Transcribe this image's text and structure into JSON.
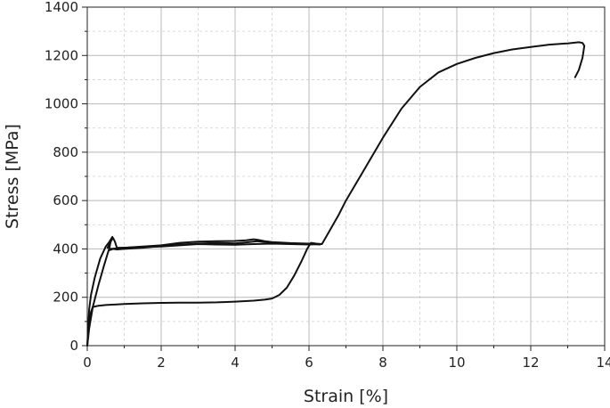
{
  "chart_data": {
    "type": "line",
    "title": "",
    "xlabel": "Strain [%]",
    "ylabel": "Stress [MPa]",
    "xlim": [
      0,
      14
    ],
    "ylim": [
      0,
      1400
    ],
    "x_ticks": [
      0,
      2,
      4,
      6,
      8,
      10,
      12,
      14
    ],
    "y_ticks": [
      0,
      200,
      400,
      600,
      800,
      1000,
      1200,
      1400
    ],
    "grid": true,
    "minor_grid": true,
    "legend": "none",
    "line_color": "#111111",
    "series": [
      {
        "x": [
          0.0,
          0.05,
          0.1,
          0.2,
          0.35,
          0.5,
          0.6,
          0.66,
          0.68,
          0.65,
          0.62,
          0.6,
          0.58,
          0.55,
          0.45,
          0.3,
          0.15,
          0.05,
          0.0
        ],
        "y": [
          0,
          150,
          210,
          280,
          360,
          410,
          430,
          445,
          450,
          440,
          420,
          405,
          395,
          380,
          330,
          250,
          160,
          70,
          0
        ]
      },
      {
        "x": [
          0.55,
          0.6,
          0.65,
          0.7,
          0.75,
          0.8,
          1.0,
          1.5,
          2.0,
          2.5,
          3.0,
          3.5,
          4.0,
          4.3,
          4.5,
          4.6,
          4.8,
          5.0,
          5.5,
          6.0,
          6.2
        ],
        "y": [
          405,
          420,
          435,
          445,
          430,
          405,
          405,
          410,
          415,
          425,
          430,
          432,
          433,
          436,
          440,
          438,
          432,
          428,
          424,
          422,
          420
        ]
      },
      {
        "x": [
          0.6,
          0.7,
          0.8,
          1.0,
          1.5,
          2.0,
          2.5,
          3.0,
          3.5,
          4.0,
          4.3,
          4.6,
          5.0,
          5.5,
          6.0,
          6.3
        ],
        "y": [
          395,
          400,
          398,
          400,
          405,
          412,
          418,
          422,
          425,
          423,
          427,
          432,
          425,
          422,
          420,
          418
        ]
      },
      {
        "x": [
          0.6,
          0.8,
          1.0,
          1.5,
          2.0,
          2.5,
          3.0,
          3.5,
          4.0,
          4.5,
          5.0,
          5.5,
          6.0,
          6.2
        ],
        "y": [
          400,
          402,
          405,
          408,
          410,
          415,
          420,
          418,
          417,
          420,
          422,
          420,
          418,
          420
        ]
      },
      {
        "x": [
          0.0,
          0.05,
          0.1,
          0.15,
          0.3,
          0.5,
          1.0,
          1.5,
          2.0,
          2.5,
          3.0,
          3.5,
          4.0,
          4.5,
          4.8,
          5.0,
          5.2,
          5.4,
          5.6,
          5.8,
          5.95,
          6.05,
          6.2,
          6.35,
          6.5,
          6.8,
          7.0,
          7.5,
          8.0,
          8.5,
          9.0,
          9.5,
          10.0,
          10.5,
          11.0,
          11.5,
          12.0,
          12.5,
          13.0,
          13.3,
          13.4,
          13.45,
          13.4,
          13.3,
          13.2
        ],
        "y": [
          0,
          100,
          140,
          160,
          165,
          168,
          172,
          175,
          177,
          178,
          178,
          179,
          182,
          186,
          190,
          195,
          210,
          240,
          290,
          350,
          400,
          425,
          422,
          420,
          460,
          540,
          600,
          730,
          860,
          980,
          1070,
          1130,
          1165,
          1190,
          1210,
          1225,
          1235,
          1245,
          1250,
          1255,
          1252,
          1240,
          1190,
          1140,
          1110
        ]
      }
    ]
  }
}
